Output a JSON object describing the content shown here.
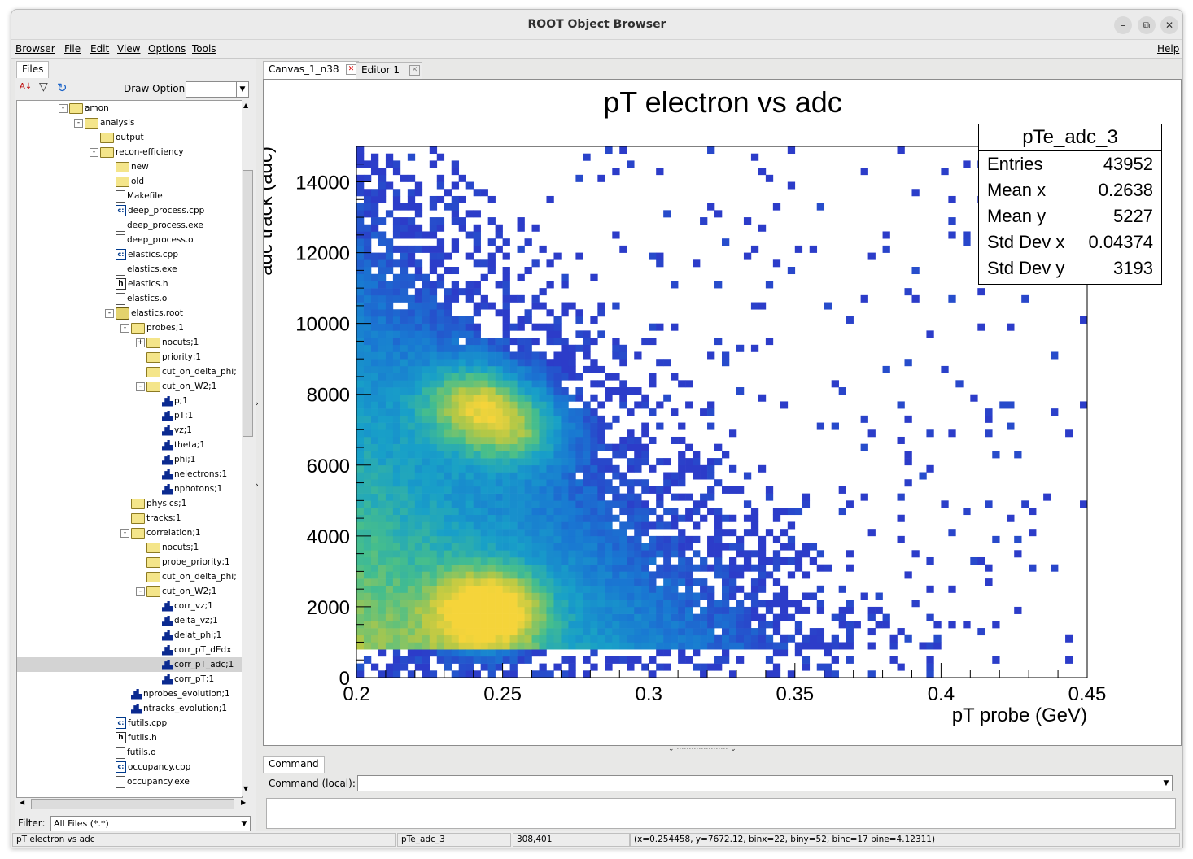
{
  "window": {
    "title": "ROOT Object Browser"
  },
  "menu": {
    "items": [
      "Browser",
      "File",
      "Edit",
      "View",
      "Options",
      "Tools"
    ],
    "help": "Help"
  },
  "left": {
    "tab": "Files",
    "draw_option_label": "Draw Option:",
    "draw_option_value": "",
    "filter_label": "Filter:",
    "filter_value": "All Files (*.*)",
    "tree": [
      {
        "label": "amon",
        "icon": "folder-open-icon",
        "depth": 0,
        "exp": "-"
      },
      {
        "label": "analysis",
        "icon": "folder-open-icon",
        "depth": 1,
        "exp": "-"
      },
      {
        "label": "output",
        "icon": "folder-icon",
        "depth": 2,
        "exp": ""
      },
      {
        "label": "recon-efficiency",
        "icon": "folder-open-icon",
        "depth": 2,
        "exp": "-"
      },
      {
        "label": "new",
        "icon": "folder-icon",
        "depth": 3,
        "exp": ""
      },
      {
        "label": "old",
        "icon": "folder-icon",
        "depth": 3,
        "exp": ""
      },
      {
        "label": "Makefile",
        "icon": "file-icon",
        "depth": 3,
        "exp": ""
      },
      {
        "label": "deep_process.cpp",
        "icon": "cpp-file-icon",
        "depth": 3,
        "exp": ""
      },
      {
        "label": "deep_process.exe",
        "icon": "file-icon",
        "depth": 3,
        "exp": ""
      },
      {
        "label": "deep_process.o",
        "icon": "file-icon",
        "depth": 3,
        "exp": ""
      },
      {
        "label": "elastics.cpp",
        "icon": "cpp-file-icon",
        "depth": 3,
        "exp": ""
      },
      {
        "label": "elastics.exe",
        "icon": "file-icon",
        "depth": 3,
        "exp": ""
      },
      {
        "label": "elastics.h",
        "icon": "header-file-icon",
        "depth": 3,
        "exp": ""
      },
      {
        "label": "elastics.o",
        "icon": "file-icon",
        "depth": 3,
        "exp": ""
      },
      {
        "label": "elastics.root",
        "icon": "root-file-icon",
        "depth": 3,
        "exp": "-"
      },
      {
        "label": "probes;1",
        "icon": "folder-open-icon",
        "depth": 4,
        "exp": "-"
      },
      {
        "label": "nocuts;1",
        "icon": "folder-icon",
        "depth": 5,
        "exp": "+"
      },
      {
        "label": "priority;1",
        "icon": "folder-icon",
        "depth": 5,
        "exp": ""
      },
      {
        "label": "cut_on_delta_phi;",
        "icon": "folder-icon",
        "depth": 5,
        "exp": ""
      },
      {
        "label": "cut_on_W2;1",
        "icon": "folder-open-icon",
        "depth": 5,
        "exp": "-"
      },
      {
        "label": "p;1",
        "icon": "histogram-icon",
        "depth": 6,
        "exp": ""
      },
      {
        "label": "pT;1",
        "icon": "histogram-icon",
        "depth": 6,
        "exp": ""
      },
      {
        "label": "vz;1",
        "icon": "histogram-icon",
        "depth": 6,
        "exp": ""
      },
      {
        "label": "theta;1",
        "icon": "histogram-icon",
        "depth": 6,
        "exp": ""
      },
      {
        "label": "phi;1",
        "icon": "histogram-icon",
        "depth": 6,
        "exp": ""
      },
      {
        "label": "nelectrons;1",
        "icon": "histogram-icon",
        "depth": 6,
        "exp": ""
      },
      {
        "label": "nphotons;1",
        "icon": "histogram-icon",
        "depth": 6,
        "exp": ""
      },
      {
        "label": "physics;1",
        "icon": "folder-icon",
        "depth": 4,
        "exp": ""
      },
      {
        "label": "tracks;1",
        "icon": "folder-icon",
        "depth": 4,
        "exp": ""
      },
      {
        "label": "correlation;1",
        "icon": "folder-open-icon",
        "depth": 4,
        "exp": "-"
      },
      {
        "label": "nocuts;1",
        "icon": "folder-icon",
        "depth": 5,
        "exp": ""
      },
      {
        "label": "probe_priority;1",
        "icon": "folder-icon",
        "depth": 5,
        "exp": ""
      },
      {
        "label": "cut_on_delta_phi;",
        "icon": "folder-icon",
        "depth": 5,
        "exp": ""
      },
      {
        "label": "cut_on_W2;1",
        "icon": "folder-open-icon",
        "depth": 5,
        "exp": "-"
      },
      {
        "label": "corr_vz;1",
        "icon": "histogram-2d-icon",
        "depth": 6,
        "exp": ""
      },
      {
        "label": "delta_vz;1",
        "icon": "histogram-icon",
        "depth": 6,
        "exp": ""
      },
      {
        "label": "delat_phi;1",
        "icon": "histogram-icon",
        "depth": 6,
        "exp": ""
      },
      {
        "label": "corr_pT_dEdx",
        "icon": "histogram-2d-icon",
        "depth": 6,
        "exp": ""
      },
      {
        "label": "corr_pT_adc;1",
        "icon": "histogram-2d-icon",
        "depth": 6,
        "exp": "",
        "selected": true
      },
      {
        "label": "corr_pT;1",
        "icon": "histogram-2d-icon",
        "depth": 6,
        "exp": ""
      },
      {
        "label": "nprobes_evolution;1",
        "icon": "histogram-icon",
        "depth": 4,
        "exp": ""
      },
      {
        "label": "ntracks_evolution;1",
        "icon": "histogram-icon",
        "depth": 4,
        "exp": ""
      },
      {
        "label": "futils.cpp",
        "icon": "cpp-file-icon",
        "depth": 3,
        "exp": ""
      },
      {
        "label": "futils.h",
        "icon": "header-file-icon",
        "depth": 3,
        "exp": ""
      },
      {
        "label": "futils.o",
        "icon": "file-icon",
        "depth": 3,
        "exp": ""
      },
      {
        "label": "occupancy.cpp",
        "icon": "cpp-file-icon",
        "depth": 3,
        "exp": ""
      },
      {
        "label": "occupancy.exe",
        "icon": "file-icon",
        "depth": 3,
        "exp": ""
      }
    ]
  },
  "right": {
    "tabs": [
      {
        "label": "Canvas_1_n38",
        "active": true
      },
      {
        "label": "Editor 1",
        "active": false
      }
    ],
    "command_tab": "Command",
    "command_label": "Command (local):",
    "command_value": ""
  },
  "stats": {
    "name": "pTe_adc_3",
    "rows": [
      {
        "k": "Entries",
        "v": "43952"
      },
      {
        "k": "Mean x",
        "v": "0.2638"
      },
      {
        "k": "Mean y",
        "v": "5227"
      },
      {
        "k": "Std Dev x",
        "v": "0.04374"
      },
      {
        "k": "Std Dev y",
        "v": "3193"
      }
    ]
  },
  "chart_data": {
    "type": "heatmap",
    "title": "pT electron vs adc",
    "xlabel": "pT probe (GeV)",
    "ylabel": "adc track (adc)",
    "xlim": [
      0.2,
      0.45
    ],
    "ylim": [
      0,
      15000
    ],
    "x_ticks": [
      "0.2",
      "0.25",
      "0.3",
      "0.35",
      "0.4",
      "0.45"
    ],
    "y_ticks": [
      "0",
      "2000",
      "4000",
      "6000",
      "8000",
      "10000",
      "12000",
      "14000"
    ],
    "bins_x": 100,
    "bins_y": 75,
    "hotspots": [
      {
        "x": 0.245,
        "y": 1900,
        "level": 1.0
      },
      {
        "x": 0.24,
        "y": 7800,
        "level": 0.75
      },
      {
        "x": 0.255,
        "y": 7000,
        "level": 0.6
      }
    ],
    "colors": {
      "low": "#2c3cc9",
      "mid": "#18a0c8",
      "high": "#f5d43a"
    }
  },
  "status": {
    "object_title": "pT electron vs adc",
    "object_name": "pTe_adc_3",
    "pixel": "308,401",
    "info": "(x=0.254458, y=7672.12, binx=22, biny=52, binc=17 bine=4.12311)"
  }
}
